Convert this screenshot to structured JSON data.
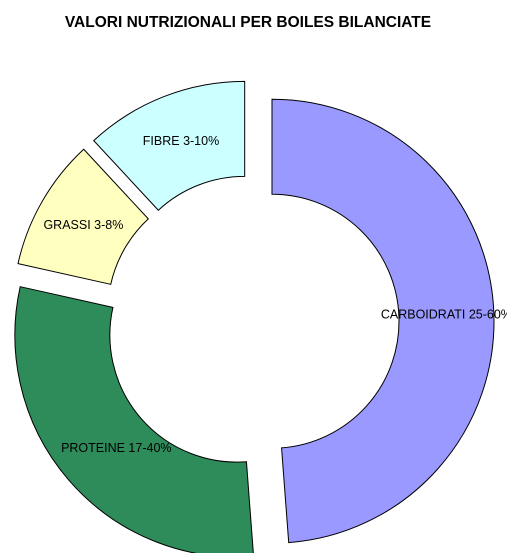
{
  "chart_data": {
    "type": "pie",
    "title": "VALORI NUTRIZIONALI PER BOILES BILANCIATE",
    "categories": [
      "CARBOIDRATI 25-60%",
      "PROTEINE 17-40%",
      "GRASSI 3-8%",
      "FIBRE 3-10%"
    ],
    "values": [
      48.8,
      29.7,
      9.6,
      11.9
    ],
    "colors": [
      "#9999ff",
      "#2e8b5a",
      "#ffffc0",
      "#ccffff"
    ],
    "donut": true,
    "exploded": true,
    "legend": "none"
  }
}
